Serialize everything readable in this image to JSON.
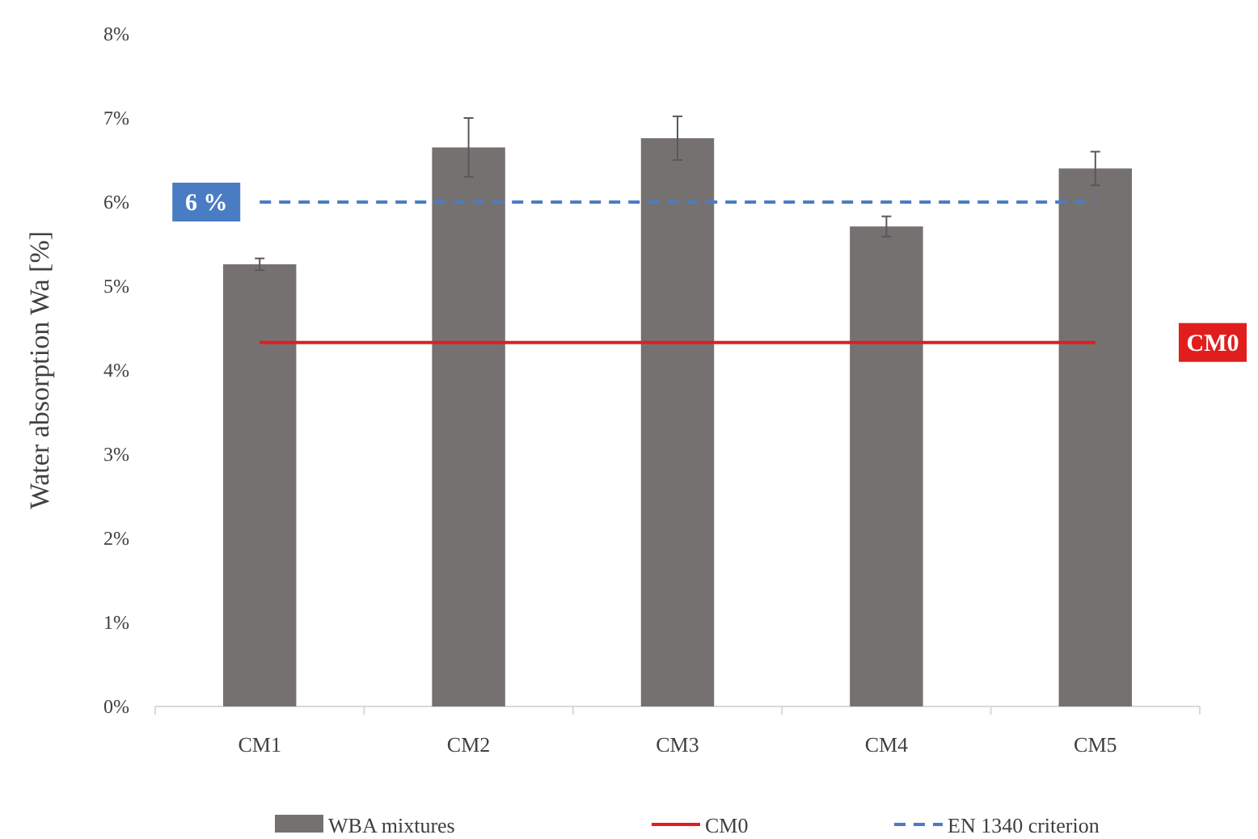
{
  "chart_data": {
    "type": "bar",
    "ylabel": "Water absorption Wa [%]",
    "categories": [
      "CM1",
      "CM2",
      "CM3",
      "CM4",
      "CM5"
    ],
    "series": [
      {
        "name": "WBA mixtures",
        "color": "#767171",
        "values": [
          5.26,
          6.65,
          6.76,
          5.71,
          6.4
        ],
        "errors": [
          0.07,
          0.35,
          0.26,
          0.12,
          0.2
        ]
      },
      {
        "name": "CM0",
        "type": "line",
        "color": "#e01e1e",
        "line_style": "solid",
        "values": [
          4.33,
          4.33,
          4.33,
          4.33,
          4.33
        ]
      },
      {
        "name": "EN 1340 criterion",
        "type": "line",
        "color": "#4a7cc4",
        "line_style": "dashed",
        "values": [
          6,
          6,
          6,
          6,
          6
        ]
      }
    ],
    "annotations": [
      {
        "text": "6 %",
        "y": 6
      },
      {
        "text": "CM0",
        "y": 4.33
      }
    ],
    "ylim": [
      0,
      8
    ],
    "yticks": [
      {
        "value": 0,
        "label": "0%"
      },
      {
        "value": 1,
        "label": "1%"
      },
      {
        "value": 2,
        "label": "2%"
      },
      {
        "value": 3,
        "label": "3%"
      },
      {
        "value": 4,
        "label": "4%"
      },
      {
        "value": 5,
        "label": "5%"
      },
      {
        "value": 6,
        "label": "6%"
      },
      {
        "value": 7,
        "label": "7%"
      },
      {
        "value": 8,
        "label": "8%"
      }
    ],
    "grid": false,
    "legend": "bottom",
    "marker": "none"
  }
}
